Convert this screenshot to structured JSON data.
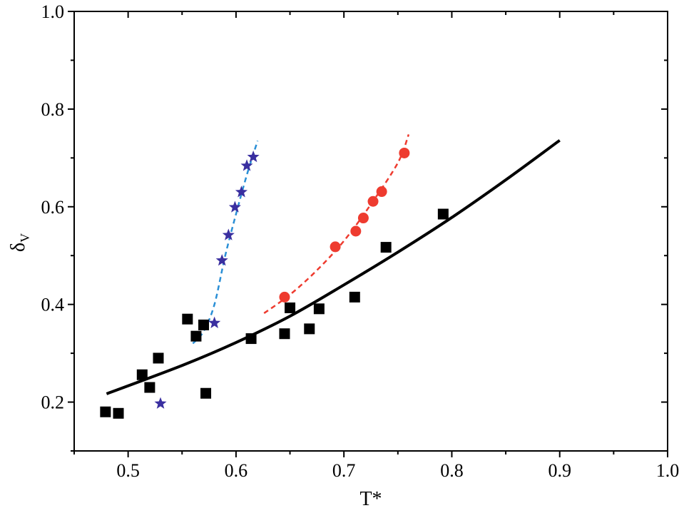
{
  "chart_data": {
    "type": "scatter",
    "title": "",
    "xlabel": "T*",
    "ylabel": "δ",
    "ylabel_sub": "V",
    "xlim": [
      0.45,
      1.0
    ],
    "ylim": [
      0.1,
      1.0
    ],
    "x_ticks": [
      0.5,
      0.6,
      0.7,
      0.8,
      0.9,
      1.0
    ],
    "x_tick_labels": [
      "0.5",
      "0.6",
      "0.7",
      "0.8",
      "0.9",
      "1.0"
    ],
    "y_ticks": [
      0.2,
      0.4,
      0.6,
      0.8,
      1.0
    ],
    "y_tick_labels": [
      "0.2",
      "0.4",
      "0.6",
      "0.8",
      "1.0"
    ],
    "grid": false,
    "legend": "none",
    "series": [
      {
        "marker": "square",
        "color": "#000000",
        "points": [
          [
            0.479,
            0.18
          ],
          [
            0.491,
            0.177
          ],
          [
            0.513,
            0.256
          ],
          [
            0.52,
            0.23
          ],
          [
            0.528,
            0.29
          ],
          [
            0.555,
            0.37
          ],
          [
            0.563,
            0.335
          ],
          [
            0.57,
            0.358
          ],
          [
            0.572,
            0.218
          ],
          [
            0.614,
            0.33
          ],
          [
            0.645,
            0.34
          ],
          [
            0.65,
            0.393
          ],
          [
            0.668,
            0.35
          ],
          [
            0.677,
            0.391
          ],
          [
            0.71,
            0.415
          ],
          [
            0.739,
            0.517
          ],
          [
            0.792,
            0.585
          ]
        ]
      },
      {
        "marker": "star",
        "color": "#3a2fa0",
        "points": [
          [
            0.53,
            0.197
          ],
          [
            0.58,
            0.362
          ],
          [
            0.587,
            0.49
          ],
          [
            0.593,
            0.542
          ],
          [
            0.599,
            0.599
          ],
          [
            0.605,
            0.63
          ],
          [
            0.61,
            0.684
          ],
          [
            0.616,
            0.702
          ]
        ]
      },
      {
        "marker": "circle",
        "color": "#ee3b2f",
        "points": [
          [
            0.645,
            0.415
          ],
          [
            0.692,
            0.518
          ],
          [
            0.711,
            0.55
          ],
          [
            0.718,
            0.577
          ],
          [
            0.727,
            0.611
          ],
          [
            0.735,
            0.631
          ],
          [
            0.756,
            0.71
          ]
        ]
      }
    ],
    "curves": [
      {
        "style": "solid",
        "color": "#000000",
        "points": [
          [
            0.48,
            0.217
          ],
          [
            0.55,
            0.275
          ],
          [
            0.6,
            0.322
          ],
          [
            0.65,
            0.376
          ],
          [
            0.7,
            0.44
          ],
          [
            0.75,
            0.507
          ],
          [
            0.8,
            0.578
          ],
          [
            0.85,
            0.655
          ],
          [
            0.9,
            0.736
          ]
        ]
      },
      {
        "style": "dashed",
        "color": "#2a8fd6",
        "points": [
          [
            0.56,
            0.32
          ],
          [
            0.57,
            0.345
          ],
          [
            0.58,
            0.4
          ],
          [
            0.59,
            0.5
          ],
          [
            0.6,
            0.585
          ],
          [
            0.61,
            0.665
          ],
          [
            0.62,
            0.735
          ]
        ]
      },
      {
        "style": "dashed",
        "color": "#ee3b2f",
        "points": [
          [
            0.626,
            0.382
          ],
          [
            0.65,
            0.42
          ],
          [
            0.675,
            0.47
          ],
          [
            0.7,
            0.53
          ],
          [
            0.725,
            0.605
          ],
          [
            0.75,
            0.69
          ],
          [
            0.76,
            0.748
          ]
        ]
      }
    ]
  }
}
